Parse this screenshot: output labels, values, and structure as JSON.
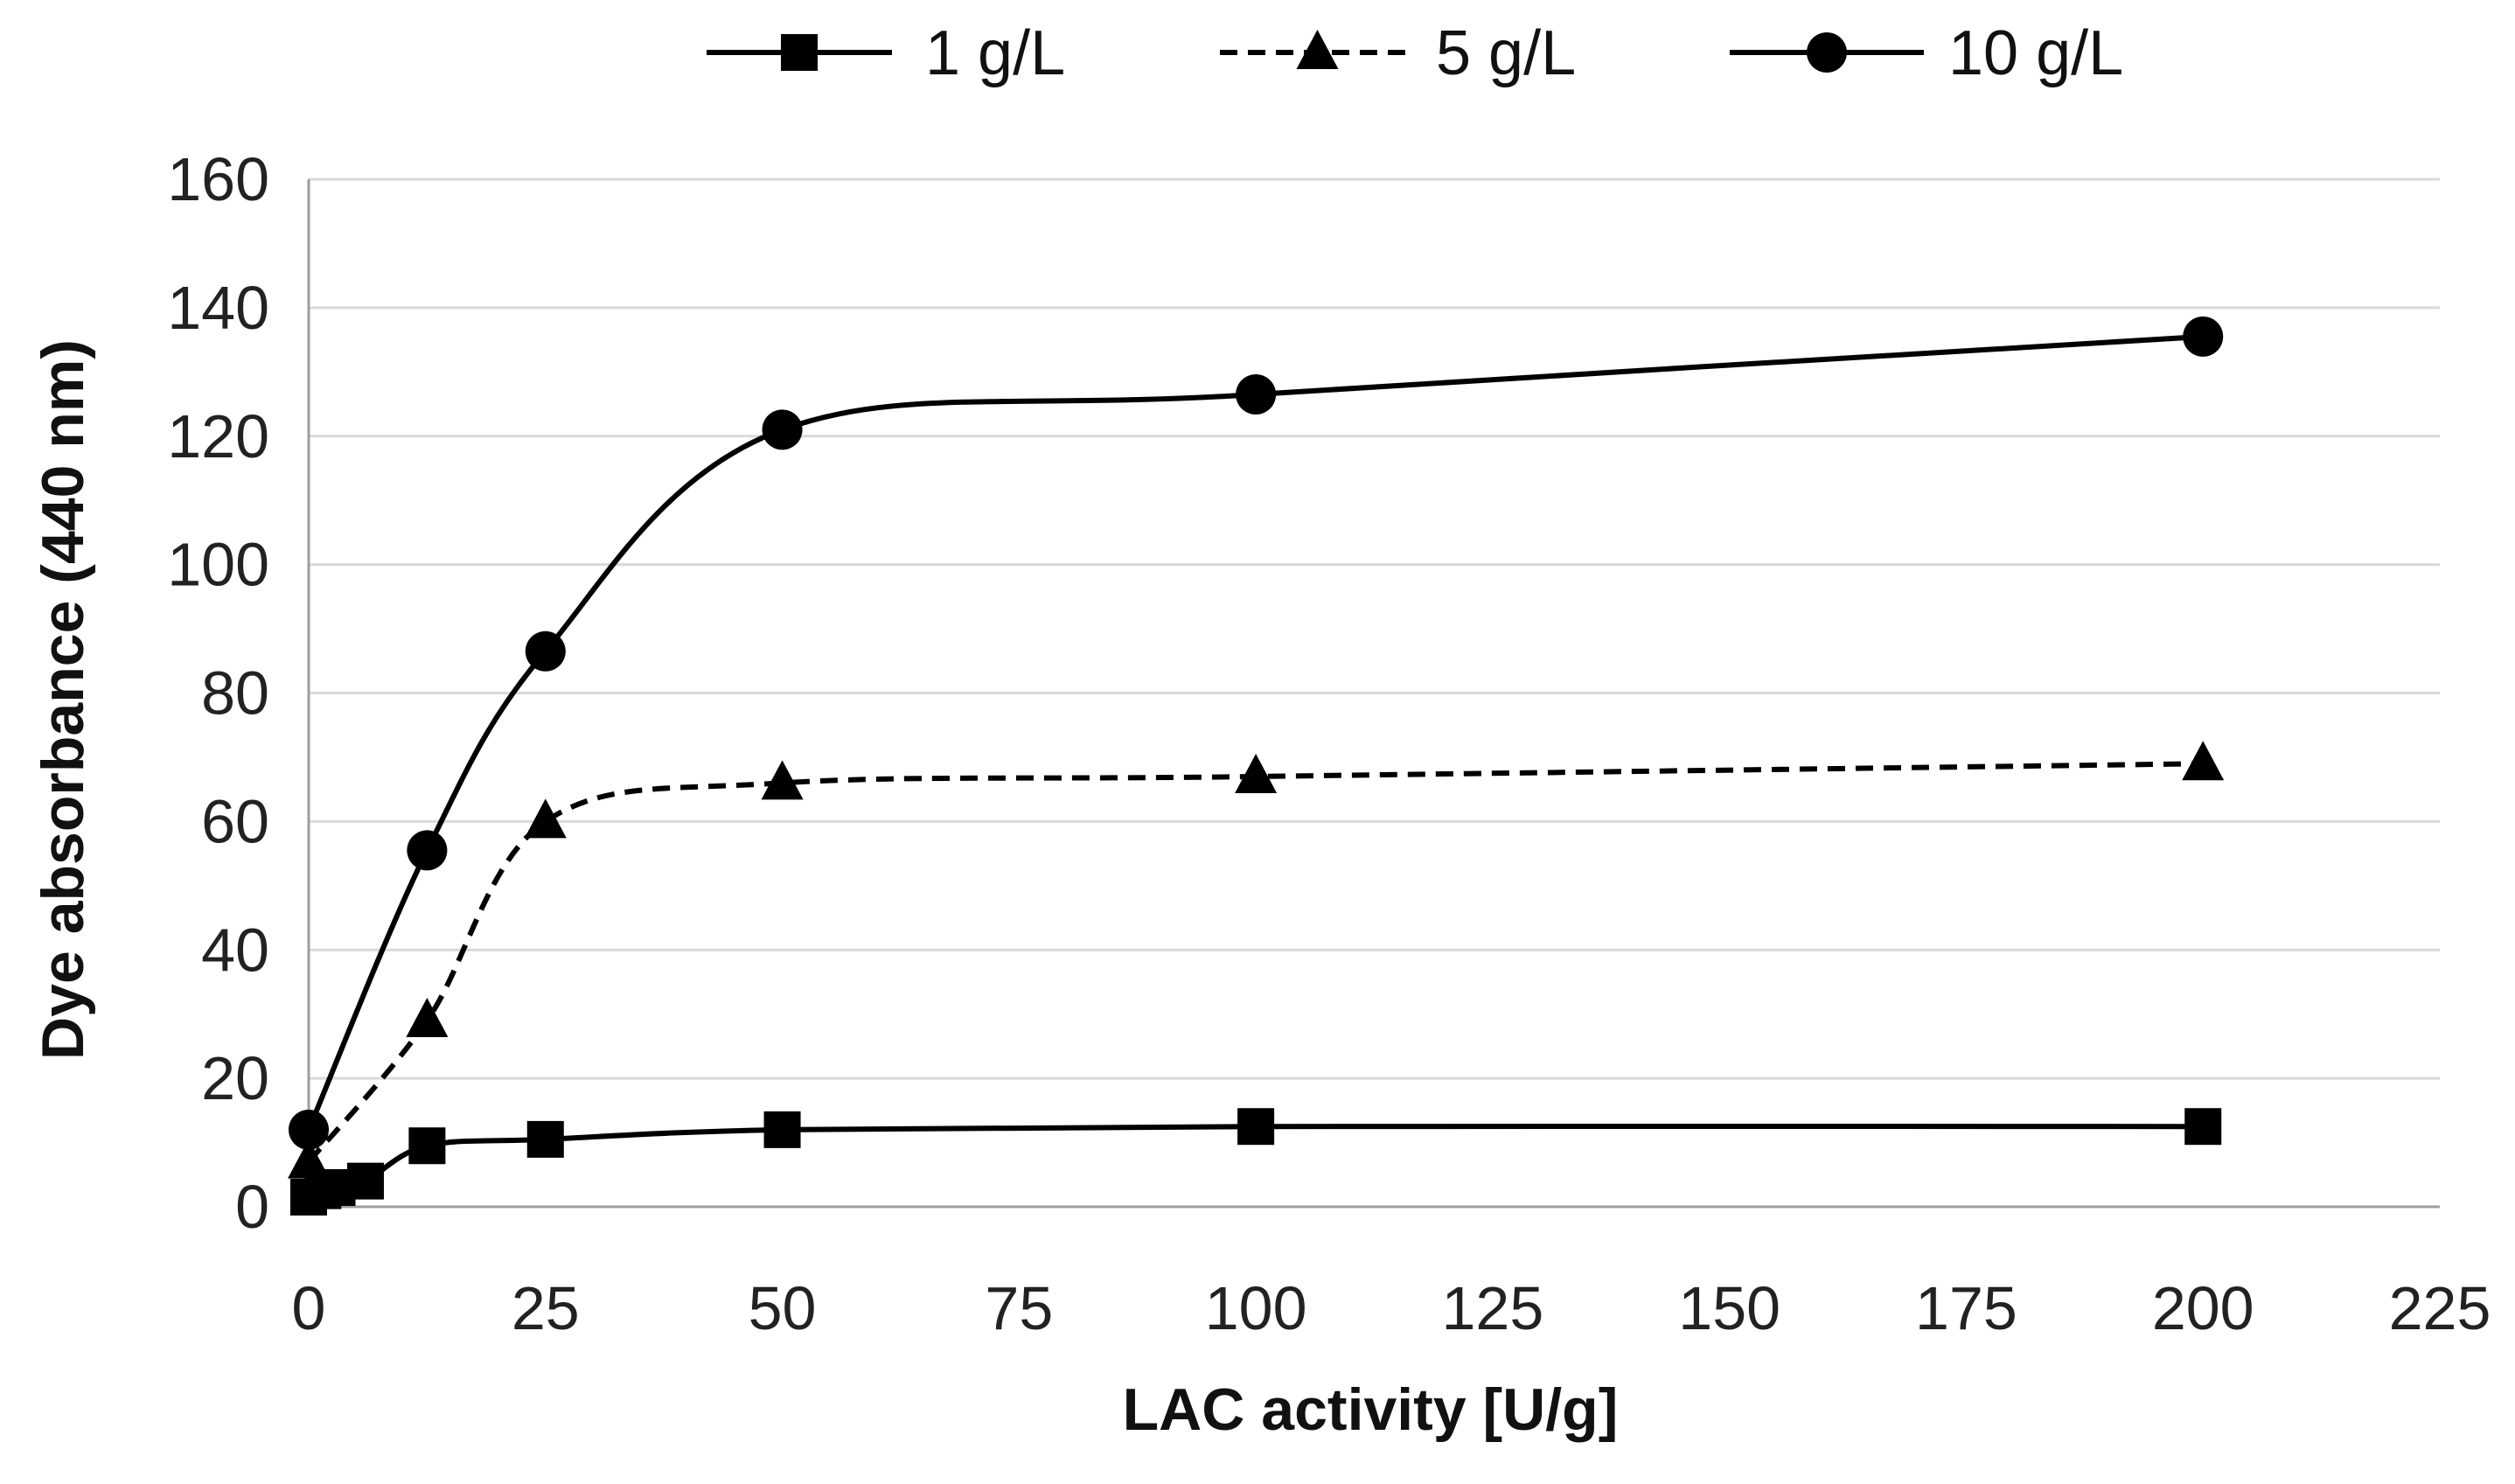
{
  "chart_data": {
    "type": "line",
    "title": "",
    "xlabel": "LAC activity [U/g]",
    "ylabel": "Dye absorbance  (440 nm)",
    "xlim": [
      0,
      225
    ],
    "ylim": [
      0,
      160
    ],
    "xticks": [
      0,
      25,
      50,
      75,
      100,
      125,
      150,
      175,
      200,
      225
    ],
    "yticks": [
      0,
      20,
      40,
      60,
      80,
      100,
      120,
      140,
      160
    ],
    "grid": "horizontal",
    "legend_position": "top",
    "series": [
      {
        "name": "1 g/L",
        "marker": "square",
        "line_style": "solid",
        "color": "#000000",
        "x": [
          0,
          1.5,
          3,
          6,
          12.5,
          25,
          50,
          100,
          200
        ],
        "y": [
          1.5,
          2.5,
          3,
          4,
          9.5,
          10.5,
          12,
          12.5,
          12.5
        ]
      },
      {
        "name": "5 g/L",
        "marker": "triangle",
        "line_style": "dashed",
        "color": "#000000",
        "x": [
          0,
          12.5,
          25,
          50,
          100,
          200
        ],
        "y": [
          7,
          29,
          60,
          66,
          67,
          69
        ]
      },
      {
        "name": "10 g/L",
        "marker": "circle",
        "line_style": "solid",
        "color": "#000000",
        "x": [
          0,
          12.5,
          25,
          50,
          100,
          200
        ],
        "y": [
          12,
          55.5,
          86.5,
          121,
          126.5,
          135.5
        ]
      }
    ]
  },
  "style": {
    "grid_color": "#d9d9d9",
    "axis_color": "#9e9e9e",
    "line_color": "#000000"
  }
}
